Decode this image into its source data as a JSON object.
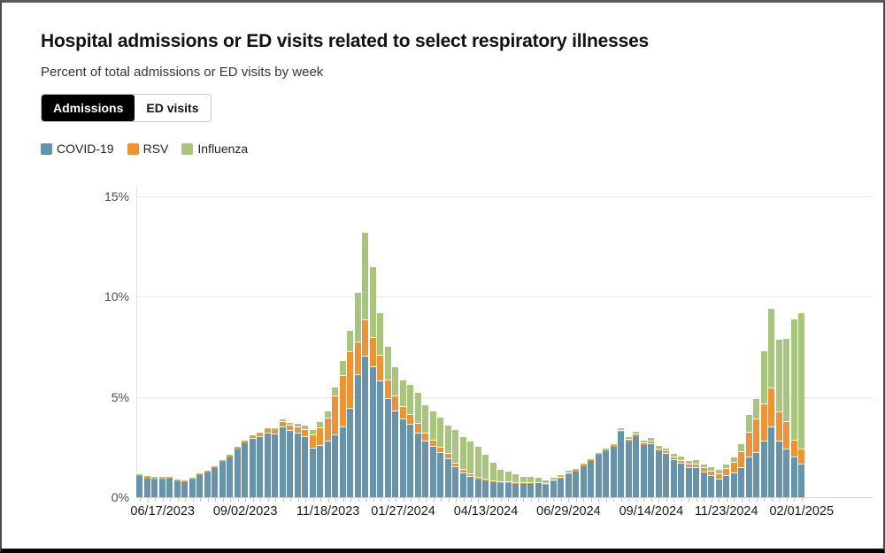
{
  "page": {
    "title": "Hospital admissions or ED visits related to select respiratory illnesses",
    "subtitle": "Percent of total admissions or ED visits by week"
  },
  "toggle": {
    "options": [
      {
        "label": "Admissions",
        "active": true
      },
      {
        "label": "ED visits",
        "active": false
      }
    ]
  },
  "legend": [
    {
      "label": "COVID-19",
      "color": "#6794ab"
    },
    {
      "label": "RSV",
      "color": "#ec9335"
    },
    {
      "label": "Influenza",
      "color": "#a8c57e"
    }
  ],
  "chart_data": {
    "type": "bar",
    "stacked": true,
    "title": "Hospital admissions or ED visits related to select respiratory illnesses",
    "xlabel": "Week",
    "ylabel": "Percent of total admissions or ED visits",
    "ylim": [
      0,
      15
    ],
    "grid": true,
    "legend_position": "top-left",
    "ytick_labels": [
      "0%",
      "5%",
      "10%",
      "15%"
    ],
    "ytick_values": [
      0,
      5,
      10,
      15
    ],
    "x_tick_labels": [
      {
        "index": 3,
        "label": "06/17/2023"
      },
      {
        "index": 14,
        "label": "09/02/2023"
      },
      {
        "index": 25,
        "label": "11/18/2023"
      },
      {
        "index": 35,
        "label": "01/27/2024"
      },
      {
        "index": 46,
        "label": "04/13/2024"
      },
      {
        "index": 57,
        "label": "06/29/2024"
      },
      {
        "index": 68,
        "label": "09/14/2024"
      },
      {
        "index": 78,
        "label": "11/23/2024"
      },
      {
        "index": 88,
        "label": "02/01/2025"
      }
    ],
    "categories": [
      "05/27/2023",
      "06/03/2023",
      "06/10/2023",
      "06/17/2023",
      "06/24/2023",
      "07/01/2023",
      "07/08/2023",
      "07/15/2023",
      "07/22/2023",
      "07/29/2023",
      "08/05/2023",
      "08/12/2023",
      "08/19/2023",
      "08/26/2023",
      "09/02/2023",
      "09/09/2023",
      "09/16/2023",
      "09/23/2023",
      "09/30/2023",
      "10/07/2023",
      "10/14/2023",
      "10/21/2023",
      "10/28/2023",
      "11/04/2023",
      "11/11/2023",
      "11/18/2023",
      "11/25/2023",
      "12/02/2023",
      "12/09/2023",
      "12/16/2023",
      "12/23/2023",
      "12/30/2023",
      "01/06/2024",
      "01/13/2024",
      "01/20/2024",
      "01/27/2024",
      "02/03/2024",
      "02/10/2024",
      "02/17/2024",
      "02/24/2024",
      "03/02/2024",
      "03/09/2024",
      "03/16/2024",
      "03/23/2024",
      "03/30/2024",
      "04/06/2024",
      "04/13/2024",
      "04/20/2024",
      "04/27/2024",
      "05/04/2024",
      "05/11/2024",
      "05/18/2024",
      "05/25/2024",
      "06/01/2024",
      "06/08/2024",
      "06/15/2024",
      "06/22/2024",
      "06/29/2024",
      "07/06/2024",
      "07/13/2024",
      "07/20/2024",
      "07/27/2024",
      "08/03/2024",
      "08/10/2024",
      "08/17/2024",
      "08/24/2024",
      "08/31/2024",
      "09/07/2024",
      "09/14/2024",
      "09/21/2024",
      "09/28/2024",
      "10/05/2024",
      "10/12/2024",
      "10/19/2024",
      "10/26/2024",
      "11/02/2024",
      "11/09/2024",
      "11/16/2024",
      "11/23/2024",
      "11/30/2024",
      "12/07/2024",
      "12/14/2024",
      "12/21/2024",
      "12/28/2024",
      "01/04/2025",
      "01/11/2025",
      "01/18/2025",
      "01/25/2025",
      "02/01/2025"
    ],
    "series": [
      {
        "name": "COVID-19",
        "color": "#6794ab",
        "values": [
          1.05,
          0.95,
          0.9,
          0.9,
          0.92,
          0.8,
          0.75,
          0.9,
          1.1,
          1.25,
          1.45,
          1.75,
          2.0,
          2.4,
          2.7,
          2.9,
          3.0,
          3.2,
          3.15,
          3.5,
          3.3,
          3.2,
          3.0,
          2.45,
          2.55,
          2.8,
          3.1,
          3.5,
          4.4,
          6.1,
          7.0,
          6.5,
          5.8,
          4.9,
          4.3,
          3.9,
          3.6,
          3.2,
          2.8,
          2.5,
          2.2,
          1.9,
          1.5,
          1.2,
          1.0,
          0.9,
          0.8,
          0.75,
          0.72,
          0.7,
          0.68,
          0.66,
          0.68,
          0.7,
          0.62,
          0.8,
          0.95,
          1.15,
          1.3,
          1.55,
          1.8,
          2.1,
          2.3,
          2.5,
          3.25,
          2.8,
          3.05,
          2.6,
          2.65,
          2.3,
          2.15,
          1.85,
          1.68,
          1.45,
          1.45,
          1.25,
          1.08,
          0.9,
          1.05,
          1.2,
          1.45,
          2.0,
          2.2,
          2.8,
          3.5,
          2.8,
          2.4,
          2.0,
          1.65
        ]
      },
      {
        "name": "RSV",
        "color": "#ec9335",
        "values": [
          0.05,
          0.05,
          0.05,
          0.05,
          0.04,
          0.04,
          0.04,
          0.04,
          0.04,
          0.05,
          0.05,
          0.06,
          0.06,
          0.07,
          0.08,
          0.1,
          0.12,
          0.14,
          0.16,
          0.2,
          0.22,
          0.26,
          0.32,
          0.6,
          0.85,
          1.1,
          1.9,
          2.5,
          2.8,
          1.6,
          1.8,
          1.4,
          1.2,
          0.9,
          0.7,
          0.55,
          0.45,
          0.4,
          0.35,
          0.3,
          0.25,
          0.2,
          0.15,
          0.12,
          0.1,
          0.08,
          0.07,
          0.06,
          0.05,
          0.04,
          0.04,
          0.03,
          0.03,
          0.03,
          0.03,
          0.03,
          0.03,
          0.03,
          0.03,
          0.04,
          0.04,
          0.05,
          0.05,
          0.06,
          0.06,
          0.06,
          0.07,
          0.08,
          0.09,
          0.08,
          0.09,
          0.1,
          0.11,
          0.12,
          0.14,
          0.15,
          0.17,
          0.2,
          0.33,
          0.5,
          0.75,
          1.2,
          1.66,
          1.8,
          1.9,
          1.4,
          1.3,
          0.8,
          0.7
        ]
      },
      {
        "name": "Influenza",
        "color": "#a8c57e",
        "values": [
          0.05,
          0.05,
          0.05,
          0.08,
          0.06,
          0.05,
          0.04,
          0.04,
          0.04,
          0.04,
          0.04,
          0.04,
          0.05,
          0.05,
          0.05,
          0.06,
          0.06,
          0.07,
          0.08,
          0.09,
          0.1,
          0.12,
          0.15,
          0.2,
          0.25,
          0.3,
          0.4,
          0.7,
          1.0,
          2.4,
          4.3,
          3.5,
          2.1,
          1.6,
          1.4,
          1.3,
          1.45,
          1.5,
          1.35,
          1.4,
          1.45,
          1.4,
          1.6,
          1.6,
          1.6,
          1.5,
          1.2,
          0.85,
          0.55,
          0.5,
          0.38,
          0.3,
          0.28,
          0.22,
          0.13,
          0.12,
          0.1,
          0.1,
          0.08,
          0.08,
          0.08,
          0.08,
          0.08,
          0.08,
          0.09,
          0.1,
          0.1,
          0.11,
          0.12,
          0.12,
          0.12,
          0.12,
          0.14,
          0.14,
          0.16,
          0.16,
          0.17,
          0.18,
          0.18,
          0.2,
          0.35,
          0.8,
          0.94,
          2.6,
          3.9,
          3.55,
          4.1,
          6.0,
          6.75
        ]
      }
    ]
  }
}
